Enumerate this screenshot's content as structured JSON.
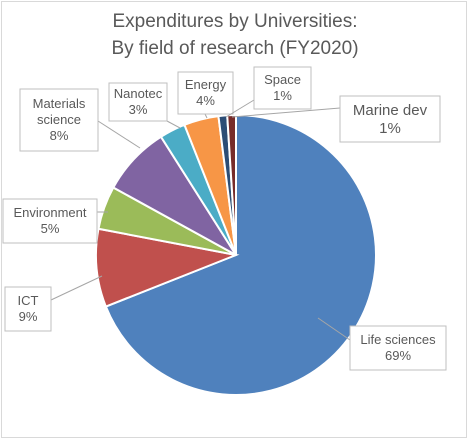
{
  "chart_data": {
    "type": "pie",
    "title": [
      "Expenditures by Universities:",
      "By field of research (FY2020)"
    ],
    "slices": [
      {
        "label": "Life sciences",
        "pct_text": "69%",
        "value": 69,
        "color": "#4f81bd"
      },
      {
        "label": "ICT",
        "pct_text": "9%",
        "value": 9,
        "color": "#c0504d"
      },
      {
        "label": "Environment",
        "pct_text": "5%",
        "value": 5,
        "color": "#9bbb59"
      },
      {
        "label": "Materials science",
        "pct_text": "8%",
        "value": 8,
        "color": "#8064a2"
      },
      {
        "label": "Nanotec",
        "pct_text": "3%",
        "value": 3,
        "color": "#4bacc6"
      },
      {
        "label": "Energy",
        "pct_text": "4%",
        "value": 4,
        "color": "#f79646"
      },
      {
        "label": "Space",
        "pct_text": "1%",
        "value": 1,
        "color": "#2c4d75"
      },
      {
        "label": "Marine dev",
        "pct_text": "1%",
        "value": 1,
        "color": "#772c2a"
      }
    ],
    "legend": "none",
    "label_style": "callout boxes with leader lines"
  }
}
